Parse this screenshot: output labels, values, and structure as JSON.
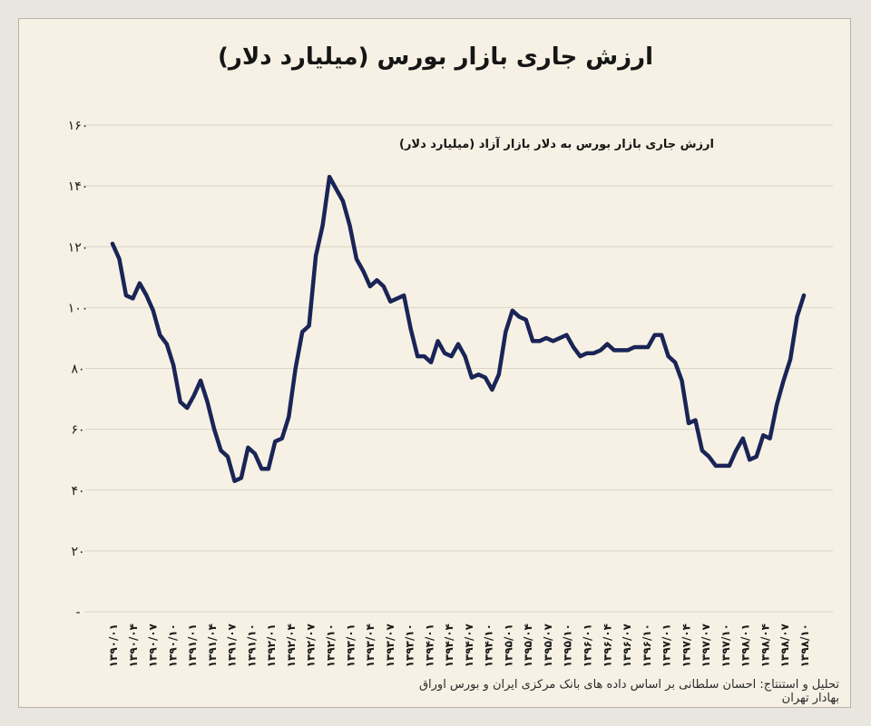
{
  "chart_data": {
    "type": "line",
    "title": "ارزش جاری بازار بورس (میلیارد دلار)",
    "subtitle": "ارزش جاری بازار بورس به دلار بازار آزاد (میلیارد دلار)",
    "xlabel": "",
    "ylabel": "",
    "ylim": [
      0,
      160
    ],
    "y_ticks": [
      "-",
      "۲۰",
      "۴۰",
      "۶۰",
      "۸۰",
      "۱۰۰",
      "۱۲۰",
      "۱۴۰",
      "۱۶۰"
    ],
    "y_tick_values": [
      0,
      20,
      40,
      60,
      80,
      100,
      120,
      140,
      160
    ],
    "grid": true,
    "line_color": "#1a2456",
    "x_tick_labels": [
      "۱۳۹۰/۰۱",
      "۱۳۹۰/۰۴",
      "۱۳۹۰/۰۷",
      "۱۳۹۰/۱۰",
      "۱۳۹۱/۰۱",
      "۱۳۹۱/۰۴",
      "۱۳۹۱/۰۷",
      "۱۳۹۱/۱۰",
      "۱۳۹۲/۰۱",
      "۱۳۹۲/۰۴",
      "۱۳۹۲/۰۷",
      "۱۳۹۲/۱۰",
      "۱۳۹۳/۰۱",
      "۱۳۹۳/۰۴",
      "۱۳۹۳/۰۷",
      "۱۳۹۳/۱۰",
      "۱۳۹۴/۰۱",
      "۱۳۹۴/۰۴",
      "۱۳۹۴/۰۷",
      "۱۳۹۴/۱۰",
      "۱۳۹۵/۰۱",
      "۱۳۹۵/۰۴",
      "۱۳۹۵/۰۷",
      "۱۳۹۵/۱۰",
      "۱۳۹۶/۰۱",
      "۱۳۹۶/۰۴",
      "۱۳۹۶/۰۷",
      "۱۳۹۶/۱۰",
      "۱۳۹۷/۰۱",
      "۱۳۹۷/۰۴",
      "۱۳۹۷/۰۷",
      "۱۳۹۷/۱۰",
      "۱۳۹۸/۰۱",
      "۱۳۹۸/۰۴",
      "۱۳۹۸/۰۷",
      "۱۳۹۸/۱۰"
    ],
    "series": [
      {
        "values": [
          121,
          116,
          104,
          103,
          108,
          104,
          99,
          91,
          88,
          81,
          69,
          67,
          71,
          76,
          69,
          60,
          53,
          51,
          43,
          44,
          54,
          52,
          47,
          47,
          56,
          57,
          64,
          80,
          92,
          94,
          117,
          127,
          143,
          139,
          135,
          127,
          116,
          112,
          107,
          109,
          107,
          102,
          103,
          104,
          93,
          84,
          84,
          82,
          89,
          85,
          84,
          88,
          84,
          77,
          78,
          77,
          73,
          78,
          92,
          99,
          97,
          96,
          89,
          89,
          90,
          89,
          90,
          91,
          87,
          84,
          85,
          85,
          86,
          88,
          86,
          86,
          86,
          87,
          87,
          87,
          91,
          91,
          84,
          82,
          76,
          62,
          63,
          53,
          51,
          48,
          48,
          48,
          53,
          57,
          50,
          51,
          58,
          57,
          68,
          76,
          83,
          97,
          104
        ]
      }
    ]
  },
  "caption": "تحلیل و استنتاج: احسان سلطانی بر اساس داده های بانک مرکزی ایران و بورس اوراق بهادار تهران"
}
